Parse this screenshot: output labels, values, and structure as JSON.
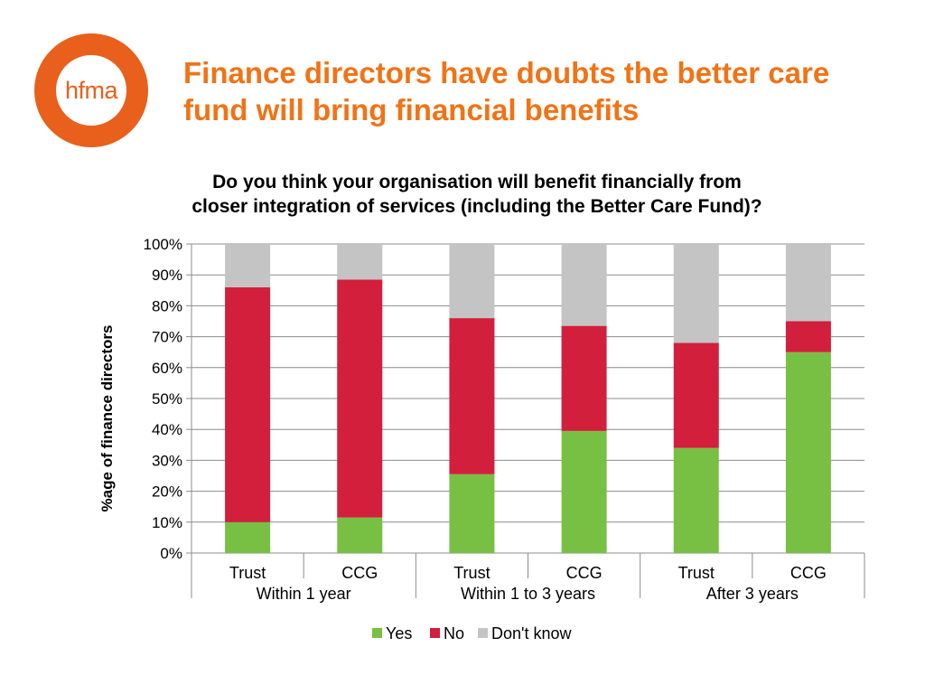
{
  "logo": {
    "text": "hfma"
  },
  "slide": {
    "title": "Finance directors have doubts the better care fund will bring financial benefits"
  },
  "chart_data": {
    "type": "bar",
    "stacked": true,
    "title_lines": [
      "Do you think your organisation will benefit financially from",
      "closer integration of services (including the Better Care Fund)?"
    ],
    "ylabel": "%age of finance directors",
    "xlabel": "",
    "ylim": [
      0,
      100
    ],
    "y_ticks": [
      "0%",
      "10%",
      "20%",
      "30%",
      "40%",
      "50%",
      "60%",
      "70%",
      "80%",
      "90%",
      "100%"
    ],
    "categories": [
      "Trust",
      "CCG",
      "Trust",
      "CCG",
      "Trust",
      "CCG"
    ],
    "groups": [
      {
        "label": "Within 1 year",
        "span": 2
      },
      {
        "label": "Within 1 to 3 years",
        "span": 2
      },
      {
        "label": "After 3 years",
        "span": 2
      }
    ],
    "series": [
      {
        "name": "Yes",
        "color": "#77c043",
        "values": [
          10,
          11.5,
          25.5,
          39.5,
          34,
          65
        ]
      },
      {
        "name": "No",
        "color": "#d21f3c",
        "values": [
          76,
          77,
          50.5,
          34,
          34,
          10
        ]
      },
      {
        "name": "Don't know",
        "color": "#c4c4c4",
        "values": [
          14,
          11.5,
          24,
          26.5,
          32,
          25
        ]
      }
    ],
    "grid": true,
    "legend_position": "bottom"
  }
}
